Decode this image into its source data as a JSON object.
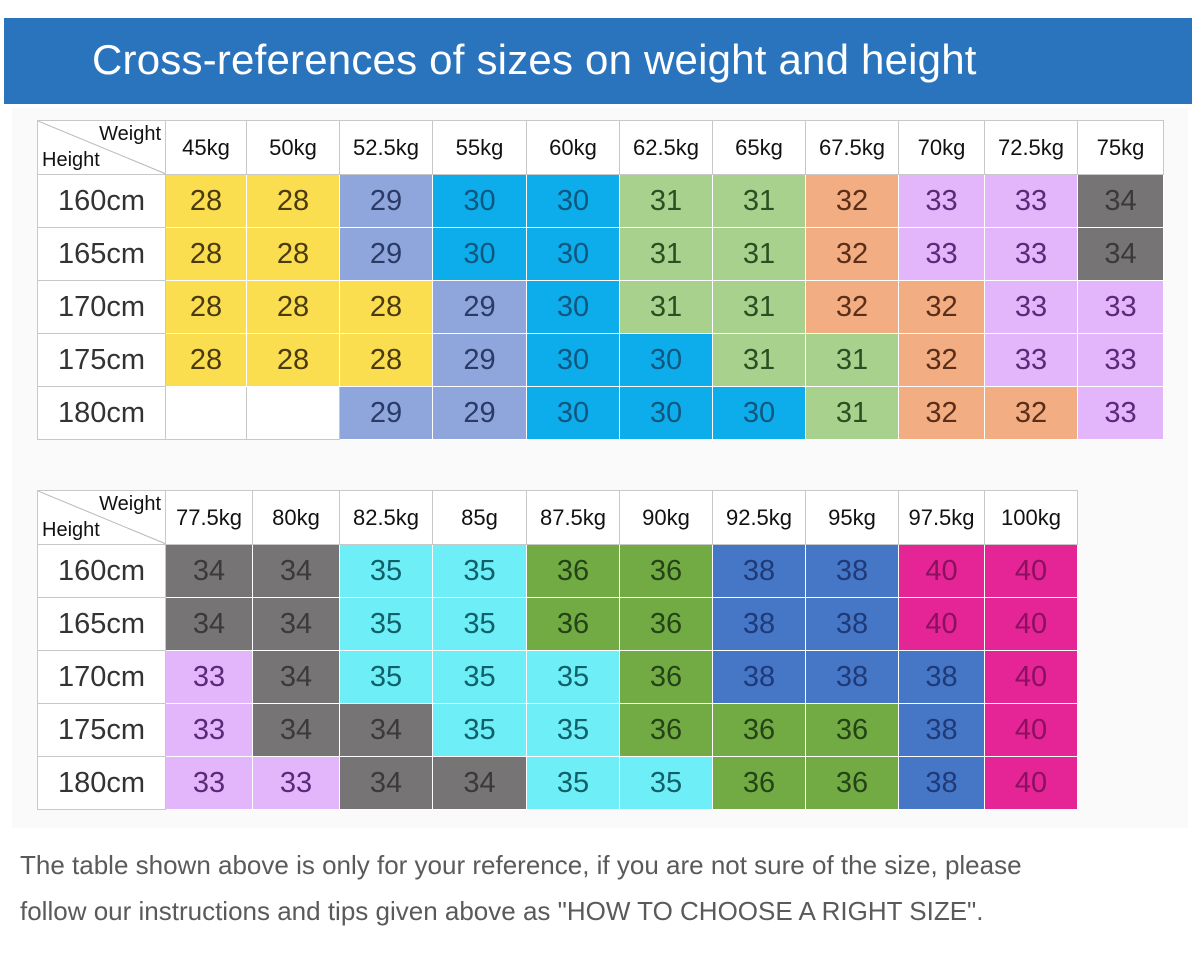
{
  "banner": {
    "title": "Cross-references of sizes on weight and height"
  },
  "corner": {
    "weight_label": "Weight",
    "height_label": "Height"
  },
  "colors": {
    "banner": "#2a73bd",
    "yellow": "#fbdd50",
    "periwinkle": "#8ea6db",
    "sky": "#0cadea",
    "light_green": "#a8d18e",
    "salmon": "#f3ad82",
    "lavender": "#e3b5fb",
    "dark_gray": "#777475",
    "cyan": "#6eeef7",
    "olive_green": "#72ab43",
    "royal_blue": "#4677c7",
    "magenta": "#e52595",
    "white": "#ffffff"
  },
  "table1": {
    "columns": [
      "45kg",
      "50kg",
      "52.5kg",
      "55kg",
      "60kg",
      "62.5kg",
      "65kg",
      "67.5kg",
      "70kg",
      "72.5kg",
      "75kg"
    ],
    "rows": [
      {
        "height": "160cm",
        "sizes": [
          "28",
          "28",
          "29",
          "30",
          "30",
          "31",
          "31",
          "32",
          "33",
          "33",
          "34"
        ]
      },
      {
        "height": "165cm",
        "sizes": [
          "28",
          "28",
          "29",
          "30",
          "30",
          "31",
          "31",
          "32",
          "33",
          "33",
          "34"
        ]
      },
      {
        "height": "170cm",
        "sizes": [
          "28",
          "28",
          "28",
          "29",
          "30",
          "31",
          "31",
          "32",
          "32",
          "33",
          "33"
        ]
      },
      {
        "height": "175cm",
        "sizes": [
          "28",
          "28",
          "28",
          "29",
          "30",
          "30",
          "31",
          "31",
          "32",
          "33",
          "33"
        ]
      },
      {
        "height": "180cm",
        "sizes": [
          "",
          "",
          "29",
          "29",
          "30",
          "30",
          "30",
          "31",
          "32",
          "32",
          "33"
        ]
      }
    ]
  },
  "table2": {
    "columns": [
      "77.5kg",
      "80kg",
      "82.5kg",
      "85g",
      "87.5kg",
      "90kg",
      "92.5kg",
      "95kg",
      "97.5kg",
      "100kg"
    ],
    "rows": [
      {
        "height": "160cm",
        "sizes": [
          "34",
          "34",
          "35",
          "35",
          "36",
          "36",
          "38",
          "38",
          "40",
          "40"
        ]
      },
      {
        "height": "165cm",
        "sizes": [
          "34",
          "34",
          "35",
          "35",
          "36",
          "36",
          "38",
          "38",
          "40",
          "40"
        ]
      },
      {
        "height": "170cm",
        "sizes": [
          "33",
          "34",
          "35",
          "35",
          "35",
          "36",
          "38",
          "38",
          "38",
          "40"
        ]
      },
      {
        "height": "175cm",
        "sizes": [
          "33",
          "34",
          "34",
          "35",
          "35",
          "36",
          "36",
          "36",
          "38",
          "40"
        ]
      },
      {
        "height": "180cm",
        "sizes": [
          "33",
          "33",
          "34",
          "34",
          "35",
          "35",
          "36",
          "36",
          "38",
          "40"
        ]
      }
    ]
  },
  "size_colors": {
    "28": {
      "bg": "#fbdd50",
      "fg": "#4a3a10"
    },
    "29": {
      "bg": "#8ea6db",
      "fg": "#2c3a66"
    },
    "30": {
      "bg": "#0cadea",
      "fg": "#10577f"
    },
    "31": {
      "bg": "#a8d18e",
      "fg": "#2b4f22"
    },
    "32": {
      "bg": "#f3ad82",
      "fg": "#5a2e18"
    },
    "33": {
      "bg": "#e3b5fb",
      "fg": "#5a2a7a"
    },
    "34": {
      "bg": "#777475",
      "fg": "#3a3a3a"
    },
    "35": {
      "bg": "#6eeef7",
      "fg": "#10606a"
    },
    "36": {
      "bg": "#72ab43",
      "fg": "#244417"
    },
    "38": {
      "bg": "#4677c7",
      "fg": "#1f3a78"
    },
    "40": {
      "bg": "#e52595",
      "fg": "#8a1060"
    }
  },
  "note": {
    "line1": "The table shown above is only for your reference, if you are not sure of the size, please",
    "line2": "follow our instructions and tips given above as \"HOW TO CHOOSE A RIGHT SIZE\"."
  }
}
